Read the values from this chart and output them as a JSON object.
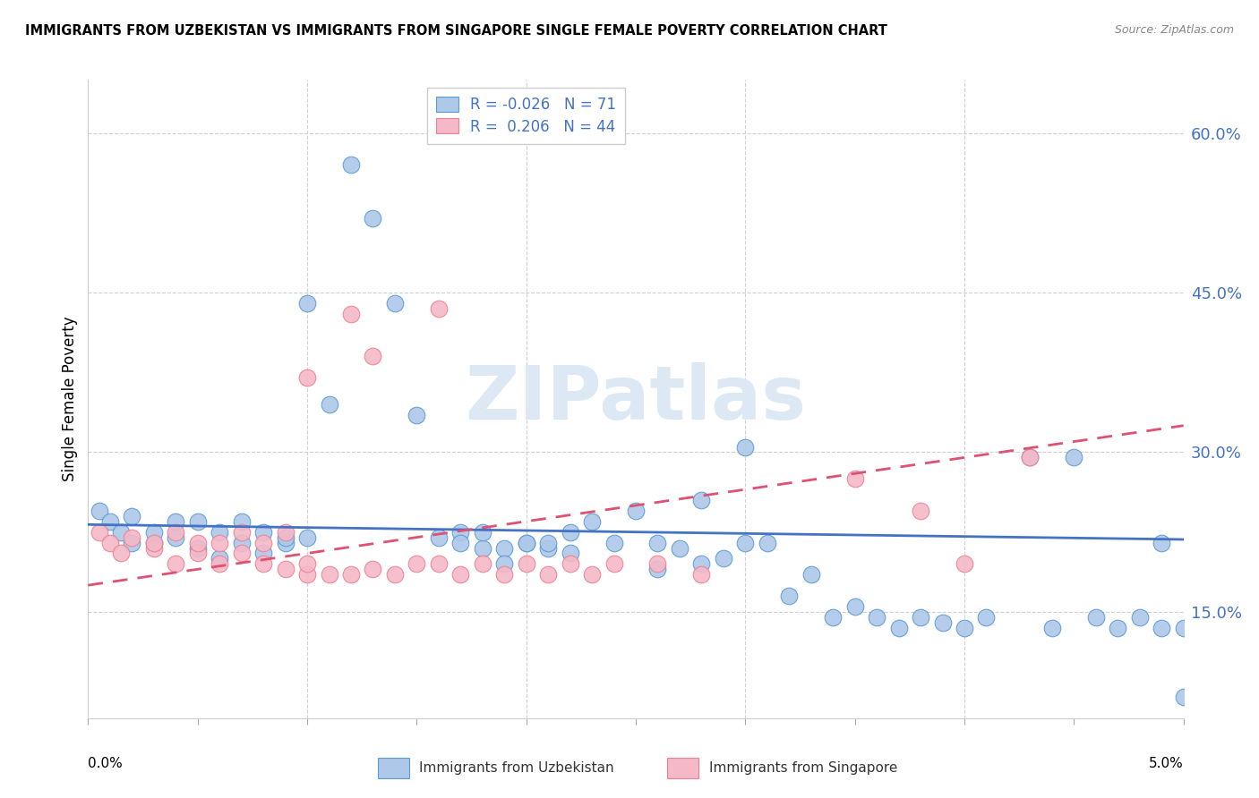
{
  "title": "IMMIGRANTS FROM UZBEKISTAN VS IMMIGRANTS FROM SINGAPORE SINGLE FEMALE POVERTY CORRELATION CHART",
  "source": "Source: ZipAtlas.com",
  "ylabel": "Single Female Poverty",
  "right_ytick_labels": [
    "15.0%",
    "30.0%",
    "45.0%",
    "60.0%"
  ],
  "right_ytick_values": [
    0.15,
    0.3,
    0.45,
    0.6
  ],
  "xmin": 0.0,
  "xmax": 0.05,
  "ymin": 0.05,
  "ymax": 0.65,
  "legend_blue_R": "-0.026",
  "legend_blue_N": "71",
  "legend_pink_R": "0.206",
  "legend_pink_N": "44",
  "blue_fill_color": "#adc8e8",
  "pink_fill_color": "#f4b8c8",
  "blue_edge_color": "#5b9bd5",
  "pink_edge_color": "#f08090",
  "blue_trend_color": "#4472c4",
  "pink_trend_color": "#e05070",
  "right_label_color": "#4472c4",
  "grid_color": "#d0d0d0",
  "watermark_color": "#dde8f5",
  "blue_scatter_x": [
    0.0005,
    0.001,
    0.0015,
    0.002,
    0.002,
    0.003,
    0.003,
    0.004,
    0.004,
    0.005,
    0.005,
    0.006,
    0.006,
    0.007,
    0.007,
    0.008,
    0.008,
    0.009,
    0.009,
    0.01,
    0.01,
    0.011,
    0.012,
    0.013,
    0.014,
    0.015,
    0.016,
    0.017,
    0.017,
    0.018,
    0.018,
    0.019,
    0.019,
    0.02,
    0.02,
    0.021,
    0.021,
    0.022,
    0.022,
    0.023,
    0.024,
    0.025,
    0.026,
    0.027,
    0.028,
    0.029,
    0.03,
    0.031,
    0.033,
    0.035,
    0.036,
    0.037,
    0.038,
    0.039,
    0.04,
    0.041,
    0.043,
    0.044,
    0.045,
    0.046,
    0.047,
    0.048,
    0.049,
    0.05,
    0.049,
    0.05,
    0.028,
    0.03,
    0.032,
    0.034,
    0.026
  ],
  "blue_scatter_y": [
    0.245,
    0.235,
    0.225,
    0.24,
    0.215,
    0.215,
    0.225,
    0.22,
    0.235,
    0.21,
    0.235,
    0.2,
    0.225,
    0.215,
    0.235,
    0.205,
    0.225,
    0.215,
    0.22,
    0.22,
    0.44,
    0.345,
    0.57,
    0.52,
    0.44,
    0.335,
    0.22,
    0.225,
    0.215,
    0.21,
    0.225,
    0.21,
    0.195,
    0.215,
    0.215,
    0.21,
    0.215,
    0.225,
    0.205,
    0.235,
    0.215,
    0.245,
    0.19,
    0.21,
    0.195,
    0.2,
    0.215,
    0.215,
    0.185,
    0.155,
    0.145,
    0.135,
    0.145,
    0.14,
    0.135,
    0.145,
    0.295,
    0.135,
    0.295,
    0.145,
    0.135,
    0.145,
    0.135,
    0.135,
    0.215,
    0.07,
    0.255,
    0.305,
    0.165,
    0.145,
    0.215
  ],
  "pink_scatter_x": [
    0.0005,
    0.001,
    0.0015,
    0.002,
    0.003,
    0.003,
    0.004,
    0.004,
    0.005,
    0.005,
    0.006,
    0.006,
    0.007,
    0.007,
    0.008,
    0.008,
    0.009,
    0.009,
    0.01,
    0.01,
    0.011,
    0.012,
    0.013,
    0.014,
    0.015,
    0.016,
    0.017,
    0.018,
    0.019,
    0.02,
    0.021,
    0.022,
    0.023,
    0.024,
    0.026,
    0.028,
    0.035,
    0.038,
    0.04,
    0.043,
    0.016,
    0.013,
    0.012,
    0.01
  ],
  "pink_scatter_y": [
    0.225,
    0.215,
    0.205,
    0.22,
    0.21,
    0.215,
    0.225,
    0.195,
    0.205,
    0.215,
    0.195,
    0.215,
    0.205,
    0.225,
    0.215,
    0.195,
    0.225,
    0.19,
    0.185,
    0.195,
    0.185,
    0.185,
    0.19,
    0.185,
    0.195,
    0.195,
    0.185,
    0.195,
    0.185,
    0.195,
    0.185,
    0.195,
    0.185,
    0.195,
    0.195,
    0.185,
    0.275,
    0.245,
    0.195,
    0.295,
    0.435,
    0.39,
    0.43,
    0.37
  ],
  "blue_trend_x": [
    0.0,
    0.05
  ],
  "blue_trend_y": [
    0.232,
    0.218
  ],
  "pink_trend_x": [
    0.0,
    0.05
  ],
  "pink_trend_y": [
    0.175,
    0.325
  ]
}
